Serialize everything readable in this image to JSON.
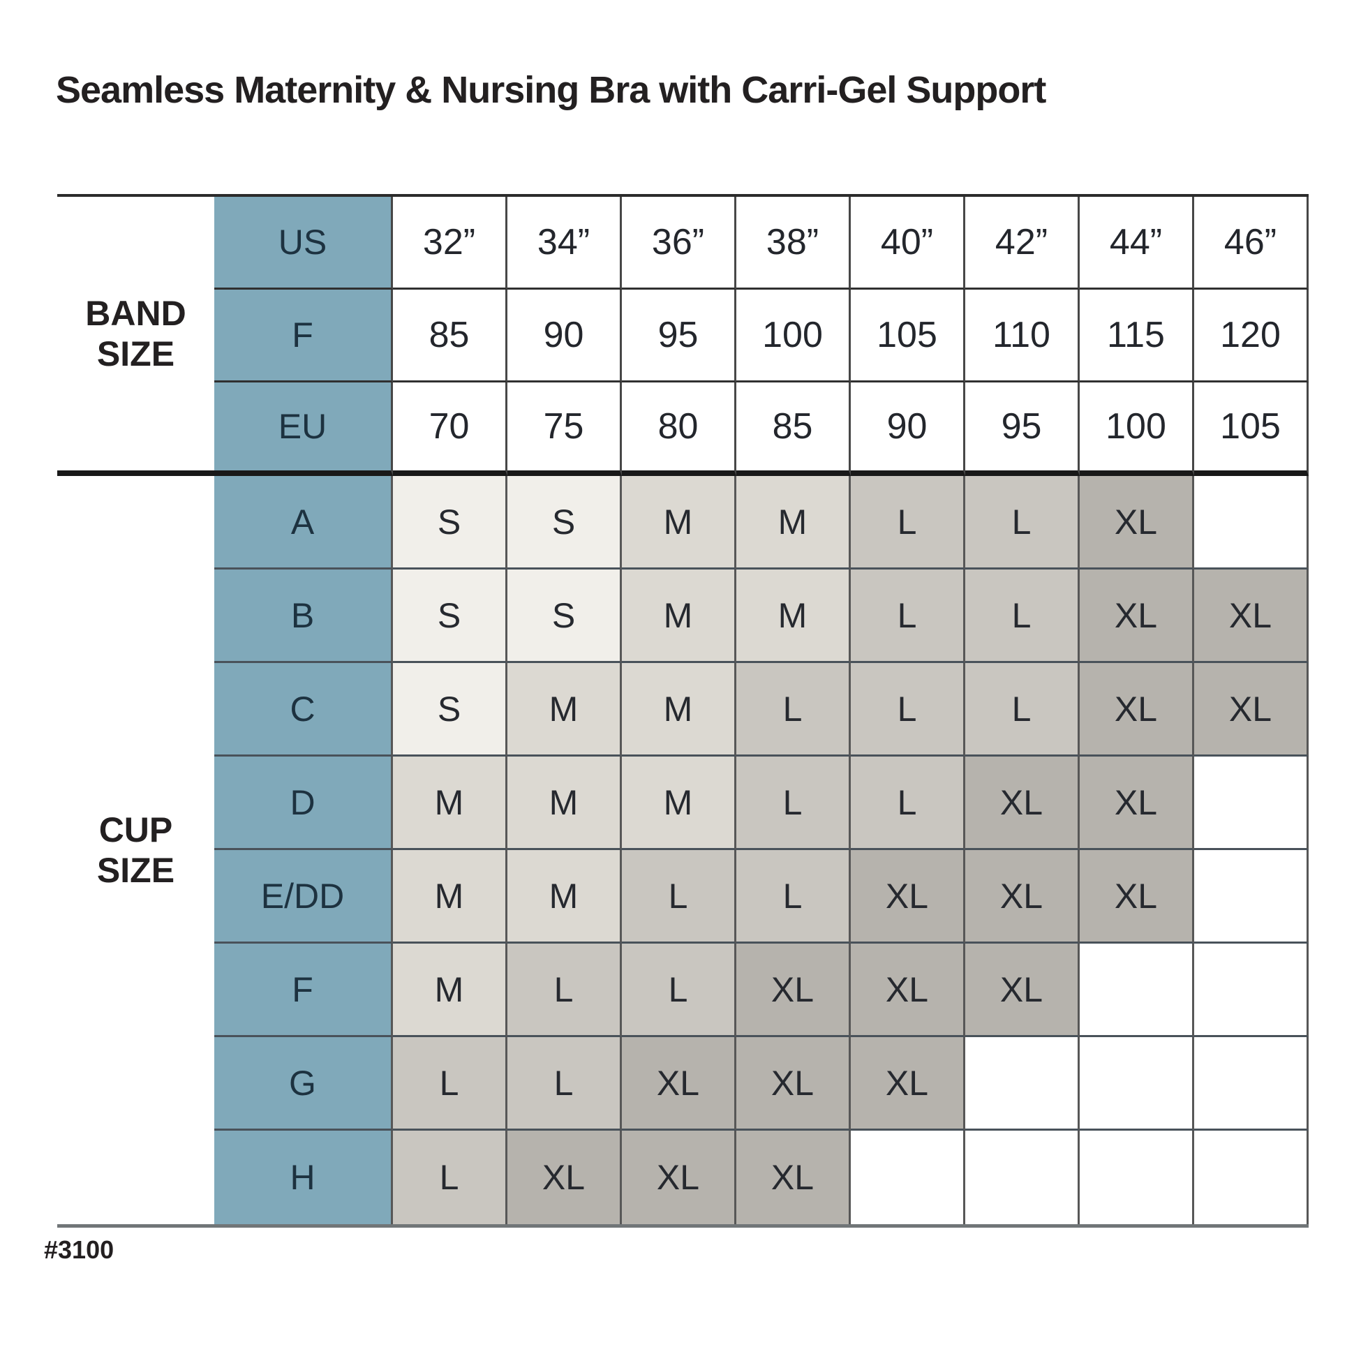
{
  "title": "Seamless Maternity & Nursing Bra with Carri-Gel Support",
  "item_number": "#3100",
  "band": {
    "label": "BAND SIZE",
    "rows": [
      {
        "label": "US",
        "values": [
          "32”",
          "34”",
          "36”",
          "38”",
          "40”",
          "42”",
          "44”",
          "46”"
        ]
      },
      {
        "label": "F",
        "values": [
          "85",
          "90",
          "95",
          "100",
          "105",
          "110",
          "115",
          "120"
        ]
      },
      {
        "label": "EU",
        "values": [
          "70",
          "75",
          "80",
          "85",
          "90",
          "95",
          "100",
          "105"
        ]
      }
    ]
  },
  "cup": {
    "label": "CUP SIZE",
    "rows": [
      {
        "label": "A",
        "values": [
          "S",
          "S",
          "M",
          "M",
          "L",
          "L",
          "XL",
          ""
        ]
      },
      {
        "label": "B",
        "values": [
          "S",
          "S",
          "M",
          "M",
          "L",
          "L",
          "XL",
          "XL"
        ]
      },
      {
        "label": "C",
        "values": [
          "S",
          "M",
          "M",
          "L",
          "L",
          "L",
          "XL",
          "XL"
        ]
      },
      {
        "label": "D",
        "values": [
          "M",
          "M",
          "M",
          "L",
          "L",
          "XL",
          "XL",
          ""
        ]
      },
      {
        "label": "E/DD",
        "values": [
          "M",
          "M",
          "L",
          "L",
          "XL",
          "XL",
          "XL",
          ""
        ]
      },
      {
        "label": "F",
        "values": [
          "M",
          "L",
          "L",
          "XL",
          "XL",
          "XL",
          "",
          ""
        ]
      },
      {
        "label": "G",
        "values": [
          "L",
          "L",
          "XL",
          "XL",
          "XL",
          "",
          "",
          ""
        ]
      },
      {
        "label": "H",
        "values": [
          "L",
          "XL",
          "XL",
          "XL",
          "",
          "",
          "",
          ""
        ]
      }
    ]
  },
  "legend_colors": {
    "S": "#f1efea",
    "M": "#dcd9d2",
    "L": "#c9c6c0",
    "XL": "#b6b3ad",
    "row_label_bg": "#80a9ba",
    "empty": "#ffffff"
  }
}
